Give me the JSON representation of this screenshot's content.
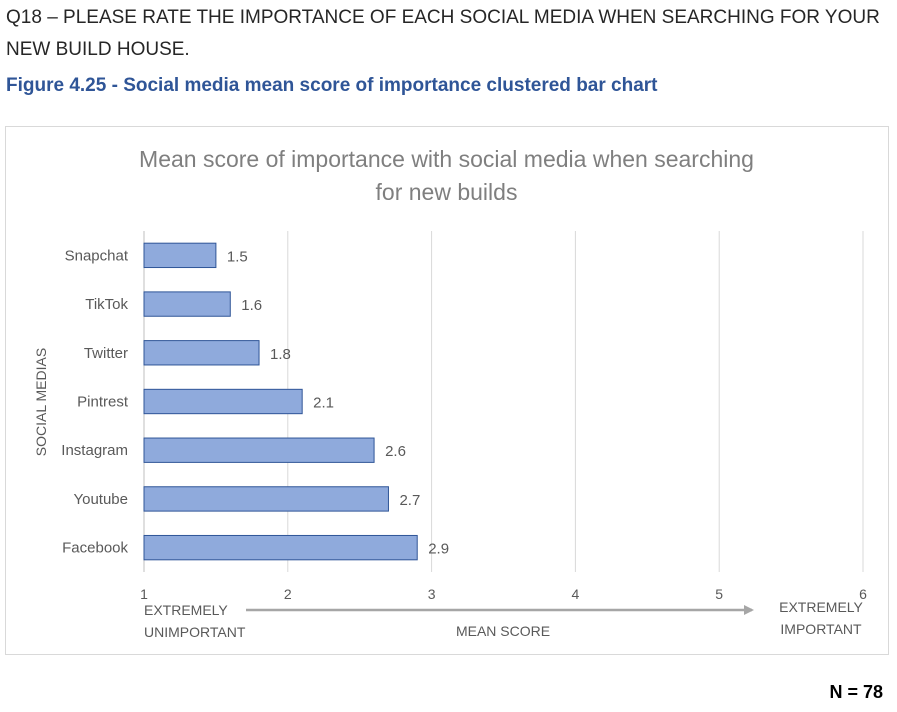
{
  "question": "Q18 – PLEASE RATE THE IMPORTANCE OF EACH SOCIAL MEDIA WHEN SEARCHING FOR YOUR NEW BUILD HOUSE.",
  "figure_caption": "Figure 4.25 - Social media mean score of importance clustered bar chart",
  "n_count": "N = 78",
  "colors": {
    "bar_fill": "#8faadc",
    "bar_stroke": "#2f5597",
    "caption": "#2f5597"
  },
  "chart_data": {
    "type": "bar",
    "orientation": "horizontal",
    "title": "Mean score of importance with social media when searching for new builds",
    "title_lines": [
      "Mean score of importance with social media when searching",
      "for new builds"
    ],
    "ylabel": "SOCIAL MEDIAS",
    "xlabel": "MEAN SCORE",
    "x_low_label": [
      "EXTREMELY",
      "UNIMPORTANT"
    ],
    "x_high_label": [
      "EXTREMELY",
      "IMPORTANT"
    ],
    "categories": [
      "Snapchat",
      "TikTok",
      "Twitter",
      "Pintrest",
      "Instagram",
      "Youtube",
      "Facebook"
    ],
    "values": [
      1.5,
      1.6,
      1.8,
      2.1,
      2.6,
      2.7,
      2.9
    ],
    "data_labels": [
      "1.5",
      "1.6",
      "1.8",
      "2.1",
      "2.6",
      "2.7",
      "2.9"
    ],
    "xlim": [
      1,
      6
    ],
    "xticks": [
      1,
      2,
      3,
      4,
      5,
      6
    ],
    "grid": true
  }
}
